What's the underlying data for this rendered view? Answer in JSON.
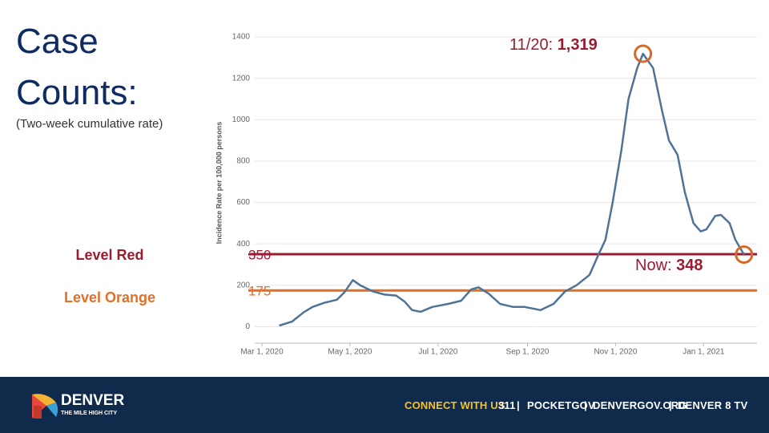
{
  "chart_data": {
    "type": "line",
    "title": "Case Counts:",
    "subtitle": "(Two-week cumulative rate)",
    "ylabel": "Incidence Rate per 100,000 persons",
    "x": [
      "2020-03-13",
      "2020-03-22",
      "2020-03-30",
      "2020-04-05",
      "2020-04-13",
      "2020-04-22",
      "2020-04-27",
      "2020-05-03",
      "2020-05-08",
      "2020-05-17",
      "2020-05-25",
      "2020-06-02",
      "2020-06-08",
      "2020-06-13",
      "2020-06-19",
      "2020-06-27",
      "2020-07-08",
      "2020-07-17",
      "2020-07-24",
      "2020-07-29",
      "2020-08-05",
      "2020-08-13",
      "2020-08-22",
      "2020-08-30",
      "2020-09-10",
      "2020-09-19",
      "2020-09-27",
      "2020-10-05",
      "2020-10-14",
      "2020-10-19",
      "2020-10-25",
      "2020-10-30",
      "2020-11-05",
      "2020-11-10",
      "2020-11-16",
      "2020-11-20",
      "2020-11-27",
      "2020-12-03",
      "2020-12-08",
      "2020-12-14",
      "2020-12-19",
      "2020-12-25",
      "2020-12-30",
      "2021-01-03",
      "2021-01-09",
      "2021-01-13",
      "2021-01-19",
      "2021-01-23",
      "2021-01-29"
    ],
    "series": [
      {
        "color": "#4f7396",
        "values": [
          5,
          25,
          70,
          95,
          115,
          130,
          165,
          225,
          200,
          170,
          155,
          150,
          120,
          80,
          72,
          95,
          110,
          125,
          180,
          190,
          160,
          110,
          95,
          95,
          80,
          110,
          170,
          200,
          250,
          330,
          420,
          600,
          850,
          1100,
          1250,
          1319,
          1250,
          1050,
          900,
          830,
          650,
          500,
          460,
          470,
          535,
          540,
          500,
          420,
          348
        ]
      }
    ],
    "xlim": [
      "2020-02-25",
      "2021-02-07"
    ],
    "xticks": [
      {
        "value": "2020-03-01",
        "label": "Mar 1, 2020"
      },
      {
        "value": "2020-05-01",
        "label": "May 1, 2020"
      },
      {
        "value": "2020-07-01",
        "label": "Jul 1, 2020"
      },
      {
        "value": "2020-09-01",
        "label": "Sep 1, 2020"
      },
      {
        "value": "2020-11-01",
        "label": "Nov 1, 2020"
      },
      {
        "value": "2021-01-01",
        "label": "Jan 1, 2021"
      }
    ],
    "ylim": [
      -80,
      1470
    ],
    "yticks": [
      0,
      200,
      400,
      600,
      800,
      1000,
      1200,
      1400
    ],
    "grid": true,
    "thresholds": [
      {
        "name": "Level Red",
        "value": 350,
        "color": "#9b1b30"
      },
      {
        "name": "Level Orange",
        "value": 175,
        "color": "#e07028"
      }
    ],
    "annotations": [
      {
        "prefix": "11/20:",
        "x": "2020-11-20",
        "value": 1319,
        "label": "1,319",
        "color": "#9b1b30"
      },
      {
        "prefix": "Now:",
        "x": "2021-01-29",
        "value": 348,
        "label": "348",
        "color": "#9b1b30"
      }
    ]
  },
  "footer": {
    "brand": "DENVER",
    "tagline": "THE MILE HIGH CITY",
    "connect": "CONNECT WITH US",
    "links": [
      "311",
      "POCKETGOV",
      "DENVERGOV.ORG",
      "DENVER 8 TV"
    ]
  }
}
